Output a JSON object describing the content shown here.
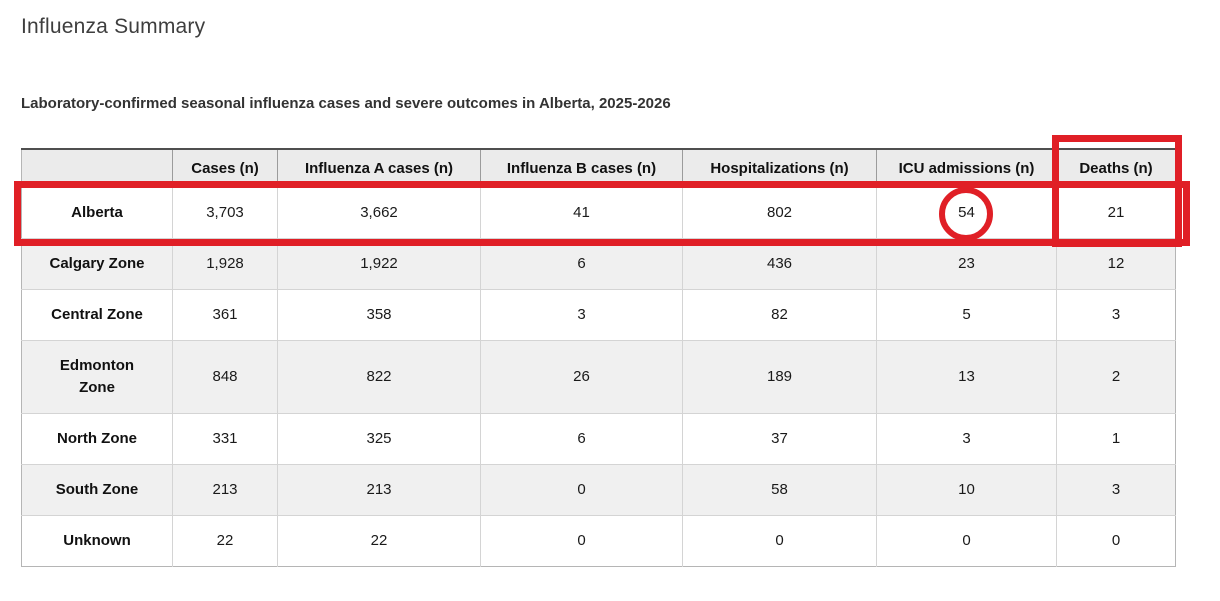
{
  "page": {
    "title": "Influenza Summary"
  },
  "table": {
    "caption": "Laboratory-confirmed seasonal influenza cases and severe outcomes in Alberta, 2025-2026",
    "columns": [
      "",
      "Cases (n)",
      "Influenza A cases (n)",
      "Influenza B cases (n)",
      "Hospitalizations (n)",
      "ICU admissions (n)",
      "Deaths (n)"
    ],
    "rows": [
      {
        "region": "Alberta",
        "values": [
          "3,703",
          "3,662",
          "41",
          "802",
          "54",
          "21"
        ]
      },
      {
        "region": "Calgary Zone",
        "values": [
          "1,928",
          "1,922",
          "6",
          "436",
          "23",
          "12"
        ]
      },
      {
        "region": "Central Zone",
        "values": [
          "361",
          "358",
          "3",
          "82",
          "5",
          "3"
        ]
      },
      {
        "region": "Edmonton Zone",
        "values": [
          "848",
          "822",
          "26",
          "189",
          "13",
          "2"
        ]
      },
      {
        "region": "North Zone",
        "values": [
          "331",
          "325",
          "6",
          "37",
          "3",
          "1"
        ]
      },
      {
        "region": "South Zone",
        "values": [
          "213",
          "213",
          "0",
          "58",
          "10",
          "3"
        ]
      },
      {
        "region": "Unknown",
        "values": [
          "22",
          "22",
          "0",
          "0",
          "0",
          "0"
        ]
      }
    ]
  },
  "annotations": {
    "highlight_color": "#e01f26",
    "row_box_target": "Alberta",
    "column_box_target": "Deaths (n)",
    "circle_target_value": "54",
    "circle_target_column": "ICU admissions (n)"
  }
}
